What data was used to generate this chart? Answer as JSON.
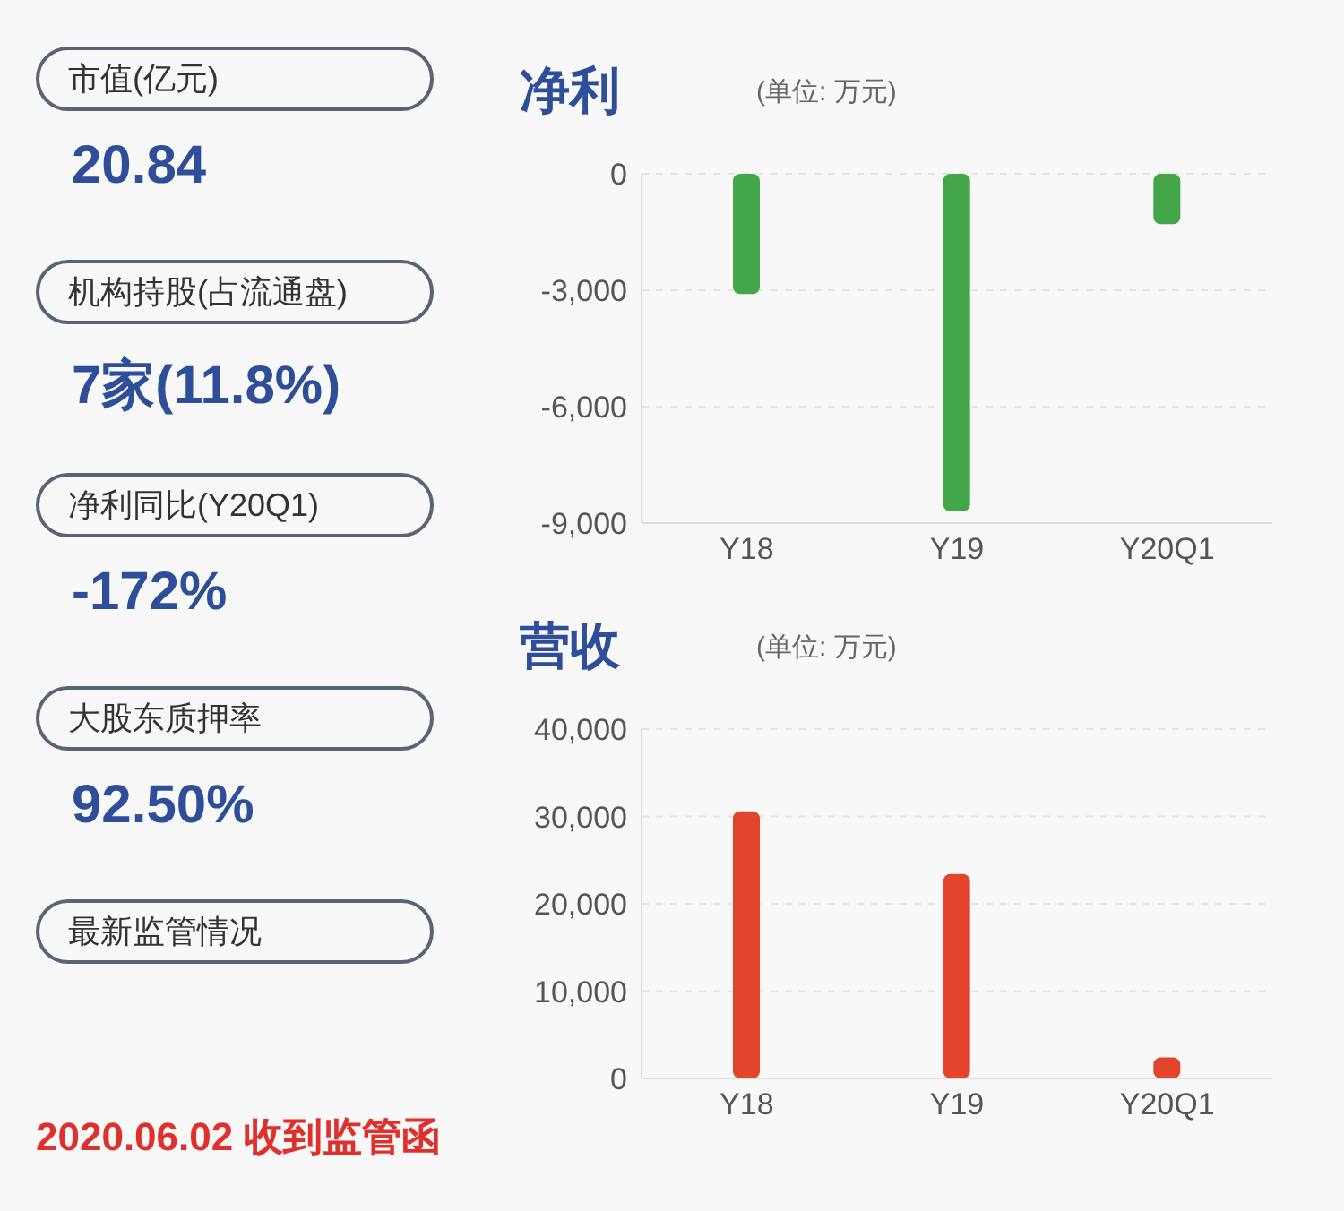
{
  "chart_data": [
    {
      "type": "other",
      "annotations": [
        "市值(亿元)",
        "20.84",
        "机构持股(占流通盘)",
        "7家(11.8%)",
        "净利同比(Y20Q1)",
        "-172%",
        "大股东质押率",
        "92.50%",
        "最新监管情况",
        "2020.06.02 收到监管函"
      ]
    },
    {
      "type": "bar",
      "title": "净利",
      "subtitle": "(单位: 万元)",
      "categories": [
        "Y18",
        "Y19",
        "Y20Q1"
      ],
      "values": [
        -3100,
        -8700,
        -1300
      ],
      "color": "#43a649",
      "ylim": [
        -9000,
        0
      ],
      "yticks": [
        {
          "value": -9000,
          "label": "-9,000"
        },
        {
          "value": -6000,
          "label": "-6,000"
        },
        {
          "value": -3000,
          "label": "-3,000"
        },
        0
      ],
      "grid": "y",
      "legend": false
    },
    {
      "type": "bar",
      "title": "营收",
      "subtitle": "(单位: 万元)",
      "categories": [
        "Y18",
        "Y19",
        "Y20Q1"
      ],
      "values": [
        30600,
        23400,
        2400
      ],
      "color": "#e2452c",
      "ylim": [
        0,
        40000
      ],
      "yticks": [
        0,
        {
          "value": 10000,
          "label": "10,000"
        },
        {
          "value": 20000,
          "label": "20,000"
        },
        {
          "value": 30000,
          "label": "30,000"
        },
        {
          "value": 40000,
          "label": "40,000"
        }
      ],
      "grid": "y",
      "legend": false
    }
  ]
}
